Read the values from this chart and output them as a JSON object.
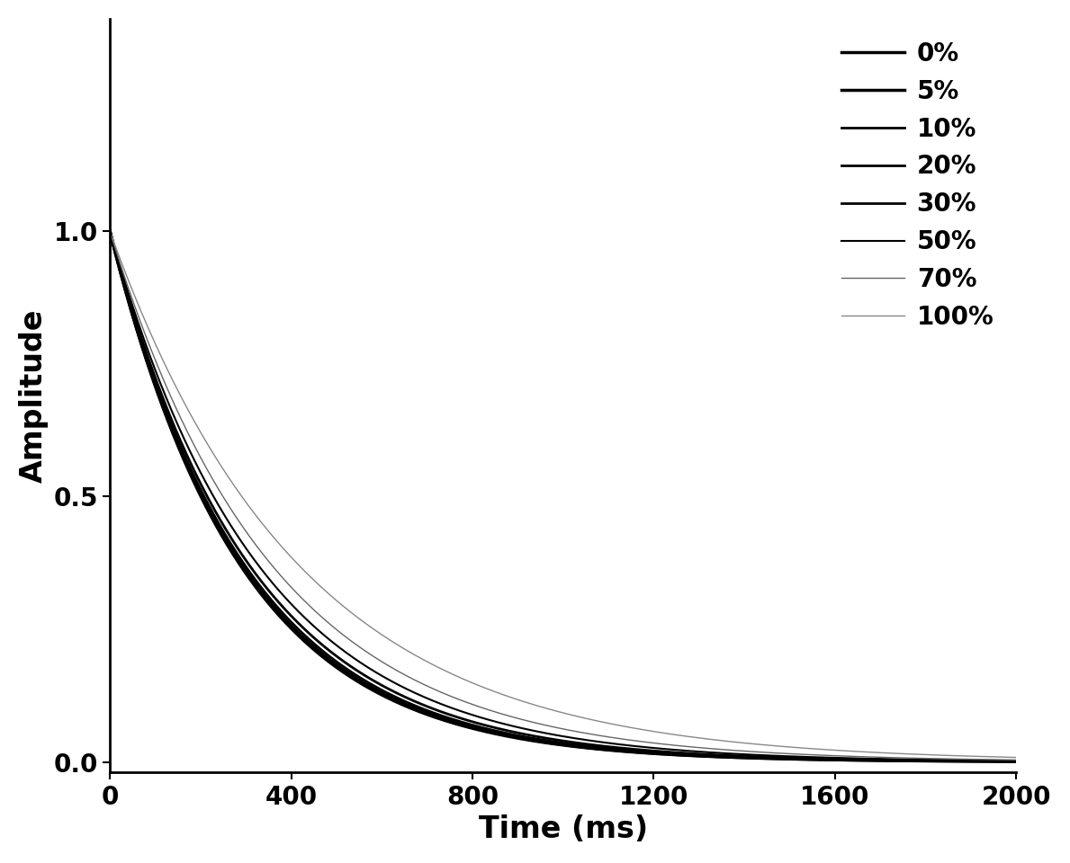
{
  "title": "",
  "xlabel": "Time (ms)",
  "ylabel": "Amplitude",
  "xlim": [
    0,
    2000
  ],
  "ylim": [
    -0.02,
    1.4
  ],
  "yticks": [
    0.0,
    0.5,
    1.0
  ],
  "xticks": [
    0,
    400,
    800,
    1200,
    1600,
    2000
  ],
  "series": [
    {
      "label": "0%",
      "T2": 290,
      "A": 1.0,
      "color": "#000000",
      "lw": 2.5
    },
    {
      "label": "5%",
      "T2": 292,
      "A": 1.0,
      "color": "#000000",
      "lw": 2.5
    },
    {
      "label": "10%",
      "T2": 295,
      "A": 1.0,
      "color": "#000000",
      "lw": 2.0
    },
    {
      "label": "20%",
      "T2": 300,
      "A": 1.0,
      "color": "#000000",
      "lw": 2.0
    },
    {
      "label": "30%",
      "T2": 310,
      "A": 1.0,
      "color": "#000000",
      "lw": 2.0
    },
    {
      "label": "50%",
      "T2": 330,
      "A": 1.0,
      "color": "#000000",
      "lw": 1.5
    },
    {
      "label": "70%",
      "T2": 360,
      "A": 1.0,
      "color": "#666666",
      "lw": 1.0
    },
    {
      "label": "100%",
      "T2": 420,
      "A": 1.0,
      "color": "#888888",
      "lw": 1.0
    }
  ],
  "background_color": "#ffffff",
  "legend_fontsize": 20,
  "axis_fontsize": 24,
  "tick_fontsize": 20
}
